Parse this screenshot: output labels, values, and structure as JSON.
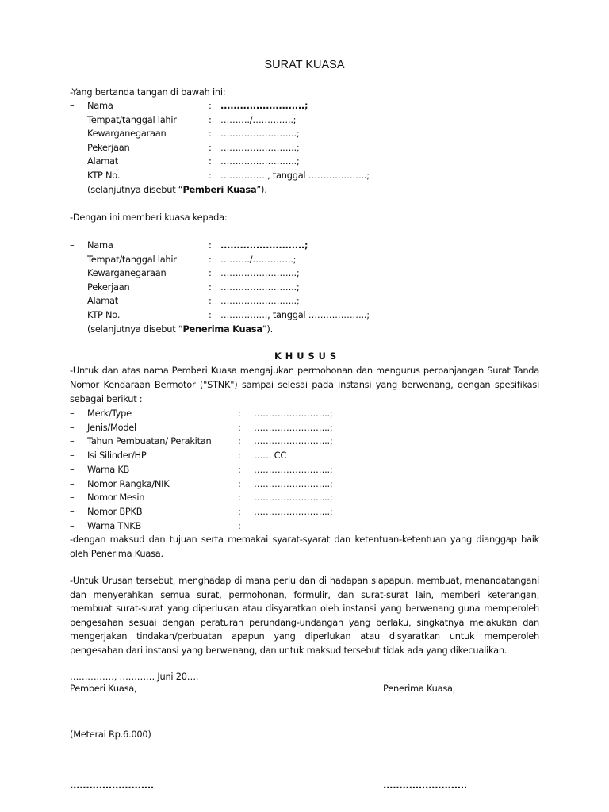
{
  "title": "SURAT KUASA",
  "intro1": "-Yang bertanda tangan di bawah ini:",
  "dash": "–",
  "colon": ":",
  "grantor": {
    "fields": [
      {
        "label": "Nama",
        "value": "..........................;"
      },
      {
        "label": "Tempat/tanggal lahir",
        "value": "………./…………..;"
      },
      {
        "label": "Kewarganegaraan",
        "value": "……………………..;"
      },
      {
        "label": "Pekerjaan",
        "value": "……………………..;"
      },
      {
        "label": "Alamat",
        "value": "……………………..;"
      },
      {
        "label": "KTP No.",
        "value": "……………., tanggal ………………..;"
      }
    ],
    "note_pre": "(selanjutnya disebut “",
    "note_bold": "Pemberi Kuasa",
    "note_post": "”)."
  },
  "intro2": "-Dengan ini memberi kuasa kepada:",
  "grantee": {
    "fields": [
      {
        "label": "Nama",
        "value": "..........................;"
      },
      {
        "label": "Tempat/tanggal lahir",
        "value": "………./…………..;"
      },
      {
        "label": "Kewarganegaraan",
        "value": "……………………..;"
      },
      {
        "label": "Pekerjaan",
        "value": "……………………..;"
      },
      {
        "label": "Alamat",
        "value": "……………………..;"
      },
      {
        "label": "KTP No.",
        "value": "……………., tanggal ………………..;"
      }
    ],
    "note_pre": "(selanjutnya disebut “",
    "note_bold": "Penerima Kuasa",
    "note_post": "”)."
  },
  "section_heading": "K H U S U S",
  "para1": [
    "-Untuk dan atas nama Pemberi Kuasa mengajukan permohonan dan mengurus perpanjangan Surat Tanda",
    "Nomor Kendaraan Bermotor (\"STNK\") sampai selesai pada instansi yang berwenang, dengan spesifikasi",
    "sebagai berikut :"
  ],
  "specs": [
    {
      "label": "Merk/Type",
      "value": "……………………..;"
    },
    {
      "label": "Jenis/Model",
      "value": "……………………..;"
    },
    {
      "label": "Tahun Pembuatan/ Perakitan",
      "value": "……………………..;"
    },
    {
      "label": "Isi Silinder/HP",
      "value": "…… CC"
    },
    {
      "label": "Warna KB",
      "value": "……………………..;"
    },
    {
      "label": "Nomor Rangka/NIK",
      "value": "……………………..;"
    },
    {
      "label": "Nomor Mesin",
      "value": "……………………..;"
    },
    {
      "label": "Nomor BPKB",
      "value": "……………………..;"
    },
    {
      "label": "Warna TNKB",
      "value": ""
    }
  ],
  "para2": [
    "-dengan maksud dan tujuan serta memakai syarat-syarat dan ketentuan-ketentuan yang dianggap baik",
    "oleh Penerima Kuasa."
  ],
  "para3": [
    "-Untuk Urusan tersebut, menghadap di mana perlu dan di hadapan siapapun, membuat, menandatangani",
    "dan menyerahkan semua surat, permohonan, formulir, dan surat-surat lain, memberi keterangan,",
    "membuat surat-surat yang diperlukan atau disyaratkan oleh instansi yang berwenang guna memperoleh",
    "pengesahan sesuai dengan peraturan perundang-undangan yang berlaku, singkatnya melakukan dan",
    "mengerjakan tindakan/perbuatan  apapun yang diperlukan atau disyaratkan untuk memperoleh",
    "pengesahan dari instansi yang berwenang, dan untuk maksud tersebut tidak ada yang dikecualikan."
  ],
  "date_line": "……………, ………… Juni 20….",
  "signer_left": "Pemberi Kuasa,",
  "signer_right": "Penerima Kuasa,",
  "stamp": "(Meterai Rp.6.000)",
  "sign_left": "..........................",
  "sign_right": ".........................."
}
